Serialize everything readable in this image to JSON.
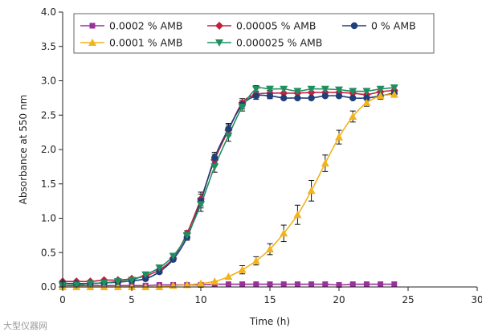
{
  "chart_data": {
    "type": "line",
    "title": "",
    "xlabel": "Time (h)",
    "ylabel": "Absorbance at 550 nm",
    "xlim": [
      0,
      30
    ],
    "ylim": [
      0.0,
      4.0
    ],
    "xticks": [
      0,
      5,
      10,
      15,
      20,
      25,
      30
    ],
    "xtick_labels": [
      "0",
      "5",
      "10",
      "15",
      "20",
      "25",
      "30"
    ],
    "yticks": [
      0.0,
      0.5,
      1.0,
      1.5,
      2.0,
      2.5,
      3.0,
      3.5,
      4.0
    ],
    "ytick_labels": [
      "0.0",
      "0.5",
      "1.0",
      "1.5",
      "2.0",
      "2.5",
      "3.0",
      "3.5",
      "4.0"
    ],
    "grid": false,
    "legend": "top, boxed, 3 columns",
    "x": [
      0,
      1,
      2,
      3,
      4,
      5,
      6,
      7,
      8,
      9,
      10,
      11,
      12,
      13,
      14,
      15,
      16,
      17,
      18,
      19,
      20,
      21,
      22,
      23,
      24
    ],
    "series": [
      {
        "name": "0.0002 % AMB",
        "color": "#9b2f9b",
        "marker": "square",
        "values": [
          0.02,
          0.02,
          0.02,
          0.02,
          0.02,
          0.02,
          0.02,
          0.03,
          0.03,
          0.03,
          0.03,
          0.04,
          0.04,
          0.04,
          0.04,
          0.04,
          0.04,
          0.04,
          0.04,
          0.04,
          0.03,
          0.04,
          0.04,
          0.04,
          0.04
        ],
        "errors": []
      },
      {
        "name": "0.00005 % AMB",
        "color": "#c0213f",
        "marker": "diamond",
        "values": [
          0.08,
          0.08,
          0.08,
          0.1,
          0.1,
          0.12,
          0.16,
          0.25,
          0.42,
          0.78,
          1.28,
          1.85,
          2.28,
          2.68,
          2.8,
          2.82,
          2.82,
          2.82,
          2.83,
          2.83,
          2.83,
          2.82,
          2.8,
          2.84,
          2.86
        ],
        "errors": [
          0,
          0,
          0,
          0,
          0,
          0,
          0,
          0,
          0,
          0.04,
          0.1,
          0.08,
          0.08,
          0.06,
          0.05,
          0.04,
          0,
          0,
          0,
          0,
          0,
          0,
          0,
          0,
          0
        ]
      },
      {
        "name": "0 % AMB",
        "color": "#1f3f7a",
        "marker": "circle",
        "values": [
          0.05,
          0.05,
          0.05,
          0.06,
          0.07,
          0.09,
          0.12,
          0.22,
          0.4,
          0.72,
          1.25,
          1.88,
          2.3,
          2.65,
          2.78,
          2.78,
          2.75,
          2.75,
          2.75,
          2.78,
          2.78,
          2.75,
          2.75,
          2.78,
          2.82
        ],
        "errors": [
          0,
          0,
          0,
          0,
          0,
          0,
          0,
          0,
          0,
          0.04,
          0.1,
          0.08,
          0.08,
          0.06,
          0.05,
          0.04,
          0,
          0,
          0,
          0,
          0,
          0,
          0,
          0,
          0
        ]
      },
      {
        "name": "0.0001 % AMB",
        "color": "#f2b31b",
        "marker": "triangle",
        "values": [
          0,
          0,
          0,
          0,
          0,
          0,
          0,
          0,
          0.02,
          0.03,
          0.05,
          0.08,
          0.15,
          0.25,
          0.38,
          0.55,
          0.78,
          1.05,
          1.4,
          1.8,
          2.18,
          2.48,
          2.68,
          2.78,
          2.8
        ],
        "errors": [
          0,
          0,
          0,
          0,
          0,
          0,
          0,
          0,
          0,
          0,
          0,
          0,
          0,
          0.06,
          0.06,
          0.08,
          0.12,
          0.14,
          0.15,
          0.12,
          0.1,
          0.08,
          0.05,
          0.05,
          0.04
        ]
      },
      {
        "name": "0.000025 % AMB",
        "color": "#1f8f5f",
        "marker": "triangle-down",
        "values": [
          0.02,
          0.03,
          0.05,
          0.06,
          0.08,
          0.1,
          0.18,
          0.28,
          0.45,
          0.75,
          1.2,
          1.75,
          2.2,
          2.62,
          2.88,
          2.88,
          2.88,
          2.85,
          2.88,
          2.88,
          2.87,
          2.85,
          2.85,
          2.88,
          2.9
        ],
        "errors": [
          0,
          0,
          0,
          0,
          0,
          0,
          0,
          0,
          0,
          0.04,
          0.1,
          0.08,
          0.08,
          0.06,
          0.05,
          0.04,
          0,
          0,
          0,
          0,
          0,
          0,
          0,
          0,
          0
        ]
      }
    ],
    "legend_order": [
      0,
      1,
      2,
      3,
      4
    ]
  },
  "watermark": "大型仪器网"
}
